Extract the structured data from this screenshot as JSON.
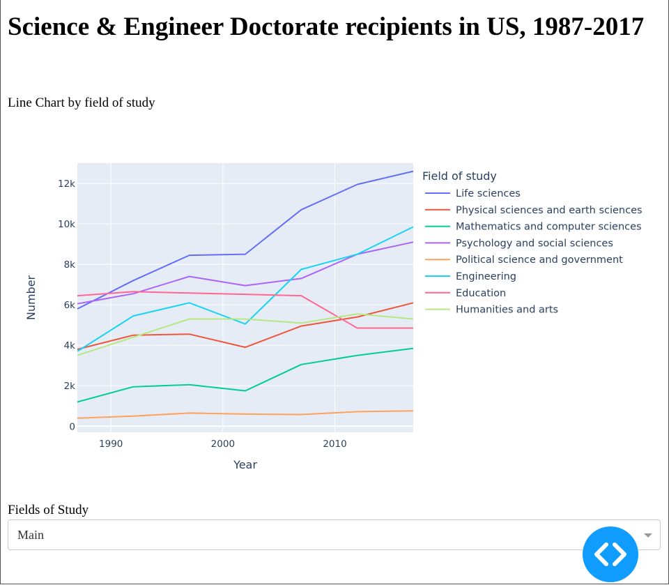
{
  "page": {
    "title": "Science & Engineer Doctorate recipients in US, 1987-2017",
    "subtitle": "Line Chart by field of study"
  },
  "dropdown": {
    "label": "Fields of Study",
    "selected": "Main"
  },
  "fab": {
    "icon": "code-icon",
    "color": "#119dff"
  },
  "chart_data": {
    "type": "line",
    "xlabel": "Year",
    "ylabel": "Number",
    "xlim": [
      1987,
      2017
    ],
    "ylim": [
      -300,
      13000
    ],
    "xticks": [
      1990,
      2000,
      2010
    ],
    "xtick_labels": [
      "1990",
      "2000",
      "2010"
    ],
    "yticks": [
      0,
      2000,
      4000,
      6000,
      8000,
      10000,
      12000
    ],
    "ytick_labels": [
      "0",
      "2k",
      "4k",
      "6k",
      "8k",
      "10k",
      "12k"
    ],
    "grid": true,
    "plot_background": "#e5ecf6",
    "legend_title": "Field of study",
    "legend_position": "right",
    "x": [
      1987,
      1992,
      1997,
      2002,
      2007,
      2012,
      2017
    ],
    "series": [
      {
        "name": "Life sciences",
        "color": "#636efa",
        "values": [
          5800,
          7200,
          8450,
          8500,
          10700,
          11950,
          12600
        ]
      },
      {
        "name": "Physical sciences and earth sciences",
        "color": "#ef553b",
        "values": [
          3800,
          4500,
          4550,
          3900,
          4950,
          5400,
          6100
        ]
      },
      {
        "name": "Mathematics and computer sciences",
        "color": "#00cc96",
        "values": [
          1200,
          1950,
          2050,
          1750,
          3050,
          3500,
          3850
        ]
      },
      {
        "name": "Psychology and social sciences",
        "color": "#ab63fa",
        "values": [
          6050,
          6550,
          7400,
          6950,
          7300,
          8500,
          9100
        ]
      },
      {
        "name": "Political science and government",
        "color": "#ffa15a",
        "values": [
          400,
          500,
          650,
          600,
          580,
          720,
          760
        ]
      },
      {
        "name": "Engineering",
        "color": "#19d3f3",
        "values": [
          3700,
          5450,
          6100,
          5050,
          7750,
          8500,
          9850
        ]
      },
      {
        "name": "Education",
        "color": "#ff6692",
        "values": [
          6450,
          6650,
          6580,
          6520,
          6450,
          4850,
          4850
        ]
      },
      {
        "name": "Humanities and arts",
        "color": "#b6e880",
        "values": [
          3500,
          4400,
          5300,
          5300,
          5100,
          5550,
          5300
        ]
      }
    ]
  }
}
